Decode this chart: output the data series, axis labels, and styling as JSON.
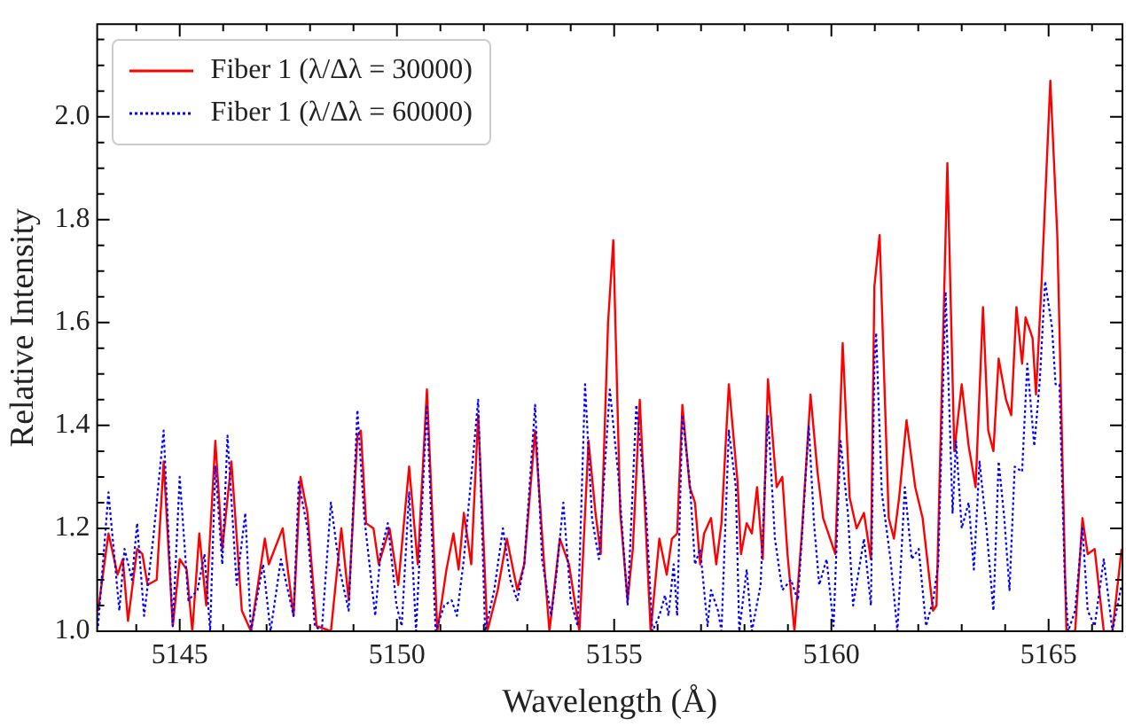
{
  "chart_data": {
    "type": "line",
    "xlabel": "Wavelength (Å)",
    "ylabel": "Relative Intensity",
    "xlim": [
      5143.1,
      5166.7
    ],
    "ylim": [
      1.0,
      2.18
    ],
    "xticks": [
      {
        "value": 5144,
        "label": null
      },
      5145,
      {
        "value": 5146,
        "label": null
      },
      {
        "value": 5147,
        "label": null
      },
      {
        "value": 5148,
        "label": null
      },
      {
        "value": 5149,
        "label": null
      },
      5150,
      {
        "value": 5151,
        "label": null
      },
      {
        "value": 5152,
        "label": null
      },
      {
        "value": 5153,
        "label": null
      },
      {
        "value": 5154,
        "label": null
      },
      5155,
      {
        "value": 5156,
        "label": null
      },
      {
        "value": 5157,
        "label": null
      },
      {
        "value": 5158,
        "label": null
      },
      {
        "value": 5159,
        "label": null
      },
      5160,
      {
        "value": 5161,
        "label": null
      },
      {
        "value": 5162,
        "label": null
      },
      {
        "value": 5163,
        "label": null
      },
      {
        "value": 5164,
        "label": null
      },
      5165,
      {
        "value": 5166,
        "label": null
      }
    ],
    "yticks": [
      {
        "value": 1.0,
        "label": "1.0"
      },
      {
        "value": 1.05,
        "label": null
      },
      {
        "value": 1.1,
        "label": null
      },
      {
        "value": 1.15,
        "label": null
      },
      {
        "value": 1.2,
        "label": "1.2"
      },
      {
        "value": 1.25,
        "label": null
      },
      {
        "value": 1.3,
        "label": null
      },
      {
        "value": 1.35,
        "label": null
      },
      {
        "value": 1.4,
        "label": "1.4"
      },
      {
        "value": 1.45,
        "label": null
      },
      {
        "value": 1.5,
        "label": null
      },
      {
        "value": 1.55,
        "label": null
      },
      {
        "value": 1.6,
        "label": "1.6"
      },
      {
        "value": 1.65,
        "label": null
      },
      {
        "value": 1.7,
        "label": null
      },
      {
        "value": 1.75,
        "label": null
      },
      {
        "value": 1.8,
        "label": "1.8"
      },
      {
        "value": 1.85,
        "label": null
      },
      {
        "value": 1.9,
        "label": null
      },
      {
        "value": 1.95,
        "label": null
      },
      {
        "value": 2.0,
        "label": "2.0"
      },
      {
        "value": 2.05,
        "label": null
      },
      {
        "value": 2.1,
        "label": null
      },
      {
        "value": 2.15,
        "label": null
      }
    ],
    "legend": "top left",
    "grid": false,
    "series": [
      {
        "name": "Fiber 1 (λ/Δλ = 30000)",
        "color": "#ff0000",
        "line_style": "solid",
        "x": [
          5143.12,
          5143.36,
          5143.57,
          5143.69,
          5143.81,
          5144.02,
          5144.14,
          5144.26,
          5144.47,
          5144.63,
          5144.84,
          5145.0,
          5145.16,
          5145.29,
          5145.45,
          5145.61,
          5145.82,
          5145.98,
          5146.19,
          5146.43,
          5146.64,
          5146.96,
          5147.05,
          5147.37,
          5147.62,
          5147.78,
          5147.94,
          5148.15,
          5148.48,
          5148.72,
          5148.89,
          5149.09,
          5149.17,
          5149.29,
          5149.46,
          5149.58,
          5149.83,
          5150.03,
          5150.28,
          5150.48,
          5150.69,
          5150.93,
          5151.14,
          5151.3,
          5151.42,
          5151.54,
          5151.71,
          5151.87,
          5152.08,
          5152.32,
          5152.53,
          5152.77,
          5152.93,
          5153.18,
          5153.38,
          5153.51,
          5153.75,
          5153.96,
          5154.2,
          5154.41,
          5154.57,
          5154.69,
          5154.86,
          5154.98,
          5155.14,
          5155.31,
          5155.43,
          5155.59,
          5155.84,
          5156.04,
          5156.21,
          5156.33,
          5156.45,
          5156.57,
          5156.74,
          5156.86,
          5156.98,
          5157.07,
          5157.23,
          5157.35,
          5157.47,
          5157.64,
          5157.84,
          5157.92,
          5158.05,
          5158.17,
          5158.29,
          5158.42,
          5158.54,
          5158.74,
          5158.87,
          5158.99,
          5159.15,
          5159.32,
          5159.52,
          5159.68,
          5159.81,
          5159.93,
          5160.09,
          5160.26,
          5160.42,
          5160.58,
          5160.75,
          5160.91,
          5160.99,
          5161.11,
          5161.32,
          5161.44,
          5161.56,
          5161.73,
          5161.93,
          5162.1,
          5162.18,
          5162.34,
          5162.42,
          5162.67,
          5162.83,
          5163.0,
          5163.16,
          5163.32,
          5163.49,
          5163.61,
          5163.73,
          5163.85,
          5164.02,
          5164.14,
          5164.26,
          5164.39,
          5164.47,
          5164.63,
          5164.71,
          5164.84,
          5165.04,
          5165.2,
          5165.41,
          5165.61,
          5165.78,
          5165.9,
          5166.06,
          5166.27,
          5166.47,
          5166.68
        ],
        "values": [
          1.04,
          1.19,
          1.11,
          1.14,
          1.02,
          1.16,
          1.15,
          1.09,
          1.1,
          1.33,
          1.01,
          1.14,
          1.12,
          1.0,
          1.19,
          1.05,
          1.37,
          1.16,
          1.33,
          1.04,
          1.0,
          1.18,
          1.13,
          1.2,
          1.03,
          1.3,
          1.23,
          1.01,
          1.0,
          1.2,
          1.06,
          1.38,
          1.39,
          1.21,
          1.2,
          1.13,
          1.2,
          1.09,
          1.32,
          1.13,
          1.47,
          1.0,
          1.12,
          1.19,
          1.12,
          1.23,
          1.13,
          1.42,
          1.0,
          1.08,
          1.18,
          1.08,
          1.13,
          1.39,
          1.14,
          1.0,
          1.18,
          1.13,
          1.0,
          1.37,
          1.23,
          1.15,
          1.6,
          1.76,
          1.23,
          1.06,
          1.16,
          1.45,
          1.0,
          1.18,
          1.11,
          1.18,
          1.19,
          1.44,
          1.28,
          1.25,
          1.13,
          1.19,
          1.22,
          1.13,
          1.21,
          1.48,
          1.29,
          1.15,
          1.21,
          1.19,
          1.28,
          1.14,
          1.49,
          1.28,
          1.3,
          1.15,
          1.0,
          1.19,
          1.46,
          1.31,
          1.22,
          1.19,
          1.15,
          1.56,
          1.26,
          1.2,
          1.23,
          1.14,
          1.67,
          1.77,
          1.22,
          1.18,
          1.26,
          1.41,
          1.28,
          1.22,
          1.16,
          1.04,
          1.05,
          1.91,
          1.35,
          1.48,
          1.36,
          1.28,
          1.63,
          1.39,
          1.35,
          1.53,
          1.45,
          1.42,
          1.63,
          1.52,
          1.61,
          1.57,
          1.46,
          1.68,
          2.07,
          1.77,
          1.0,
          1.0,
          1.22,
          1.15,
          1.16,
          1.0,
          1.0,
          1.16
        ]
      },
      {
        "name": "Fiber 1 (λ/Δλ = 60000)",
        "color": "#0000ff",
        "line_style": "dotted",
        "x": [
          5143.12,
          5143.36,
          5143.61,
          5143.73,
          5143.9,
          5144.02,
          5144.18,
          5144.39,
          5144.63,
          5144.84,
          5145.0,
          5145.2,
          5145.41,
          5145.57,
          5145.7,
          5145.82,
          5145.98,
          5146.1,
          5146.31,
          5146.51,
          5146.64,
          5146.92,
          5147.09,
          5147.33,
          5147.62,
          5147.74,
          5147.94,
          5148.11,
          5148.27,
          5148.48,
          5148.68,
          5148.89,
          5149.09,
          5149.25,
          5149.5,
          5149.62,
          5149.79,
          5149.99,
          5150.11,
          5150.28,
          5150.44,
          5150.69,
          5150.89,
          5151.09,
          5151.26,
          5151.38,
          5151.54,
          5151.87,
          5152.03,
          5152.24,
          5152.44,
          5152.61,
          5152.77,
          5152.93,
          5153.18,
          5153.34,
          5153.55,
          5153.67,
          5153.83,
          5154.0,
          5154.16,
          5154.33,
          5154.49,
          5154.65,
          5154.9,
          5155.1,
          5155.31,
          5155.51,
          5155.72,
          5155.88,
          5156.04,
          5156.17,
          5156.25,
          5156.37,
          5156.45,
          5156.57,
          5156.74,
          5156.86,
          5156.98,
          5157.15,
          5157.23,
          5157.39,
          5157.47,
          5157.64,
          5157.8,
          5157.88,
          5158.05,
          5158.17,
          5158.37,
          5158.54,
          5158.7,
          5158.87,
          5159.07,
          5159.23,
          5159.48,
          5159.6,
          5159.72,
          5159.89,
          5160.05,
          5160.21,
          5160.38,
          5160.5,
          5160.75,
          5160.91,
          5160.99,
          5161.03,
          5161.16,
          5161.36,
          5161.52,
          5161.69,
          5161.85,
          5162.01,
          5162.18,
          5162.34,
          5162.46,
          5162.63,
          5162.79,
          5162.87,
          5163.0,
          5163.16,
          5163.28,
          5163.41,
          5163.57,
          5163.73,
          5163.85,
          5163.98,
          5164.1,
          5164.22,
          5164.39,
          5164.51,
          5164.67,
          5164.8,
          5164.92,
          5165.08,
          5165.16,
          5165.25,
          5165.37,
          5165.45,
          5165.61,
          5165.78,
          5165.9,
          5166.06,
          5166.27,
          5166.47,
          5166.68
        ],
        "values": [
          1.01,
          1.27,
          1.04,
          1.16,
          1.1,
          1.21,
          1.03,
          1.18,
          1.39,
          1.01,
          1.3,
          1.06,
          1.08,
          1.15,
          1.0,
          1.32,
          1.13,
          1.38,
          1.09,
          1.23,
          1.0,
          1.13,
          1.0,
          1.14,
          1.03,
          1.29,
          1.2,
          1.01,
          1.0,
          1.25,
          1.12,
          1.04,
          1.43,
          1.22,
          1.03,
          1.15,
          1.21,
          1.05,
          1.01,
          1.27,
          1.0,
          1.44,
          1.0,
          1.05,
          1.06,
          1.03,
          1.14,
          1.45,
          1.0,
          1.08,
          1.2,
          1.1,
          1.06,
          1.13,
          1.44,
          1.14,
          1.03,
          1.11,
          1.25,
          1.06,
          1.01,
          1.48,
          1.22,
          1.14,
          1.47,
          1.3,
          1.05,
          1.44,
          1.26,
          1.0,
          1.03,
          1.07,
          1.03,
          1.13,
          1.03,
          1.42,
          1.29,
          1.13,
          1.16,
          1.01,
          1.08,
          1.04,
          1.0,
          1.39,
          1.28,
          1.0,
          1.12,
          1.0,
          1.09,
          1.42,
          1.18,
          1.08,
          1.1,
          1.06,
          1.4,
          1.21,
          1.09,
          1.14,
          1.01,
          1.37,
          1.23,
          1.05,
          1.18,
          1.05,
          1.52,
          1.58,
          1.27,
          1.14,
          1.0,
          1.28,
          1.14,
          1.16,
          1.01,
          1.06,
          1.13,
          1.66,
          1.23,
          1.37,
          1.2,
          1.25,
          1.12,
          1.33,
          1.2,
          1.04,
          1.33,
          1.22,
          1.08,
          1.32,
          1.31,
          1.52,
          1.36,
          1.49,
          1.68,
          1.59,
          1.48,
          1.48,
          1.11,
          1.0,
          1.04,
          1.2,
          1.04,
          1.01,
          1.14,
          1.0,
          1.09
        ]
      }
    ]
  }
}
